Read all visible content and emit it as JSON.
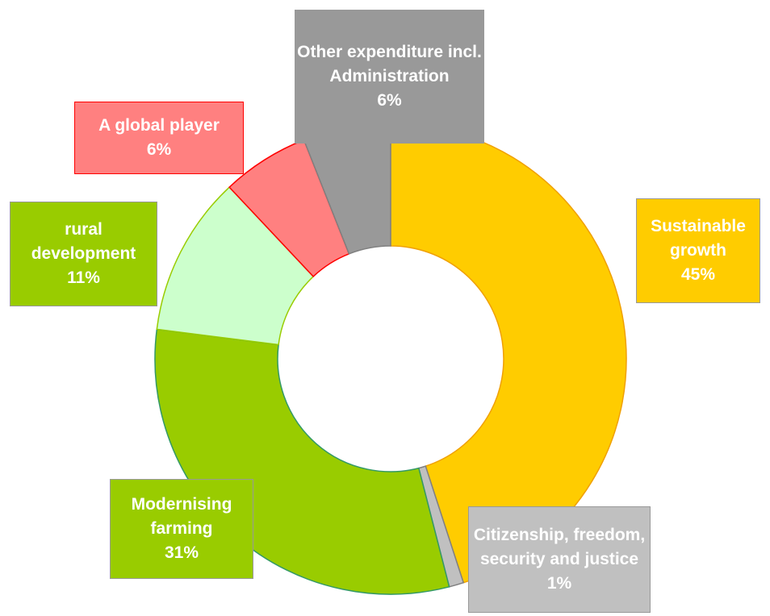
{
  "chart_data": {
    "type": "donut",
    "categories": [
      "Sustainable growth",
      "Citizenship, freedom, security and justice",
      "Modernising farming",
      "rural development",
      "A global player",
      "Other expenditure incl. Administration"
    ],
    "values": [
      45,
      1,
      31,
      11,
      6,
      6
    ],
    "value_labels": [
      "45%",
      "1%",
      "31%",
      "11%",
      "6%",
      "6%"
    ],
    "colors": [
      "#ffcc00",
      "#c0c0c0",
      "#99cc00",
      "#ccffcc",
      "#ff8080",
      "#999999"
    ],
    "label_colors": [
      "#ffcc00",
      "#c0c0c0",
      "#99cc00",
      "#99cc00",
      "#ff8080",
      "#999999"
    ]
  }
}
